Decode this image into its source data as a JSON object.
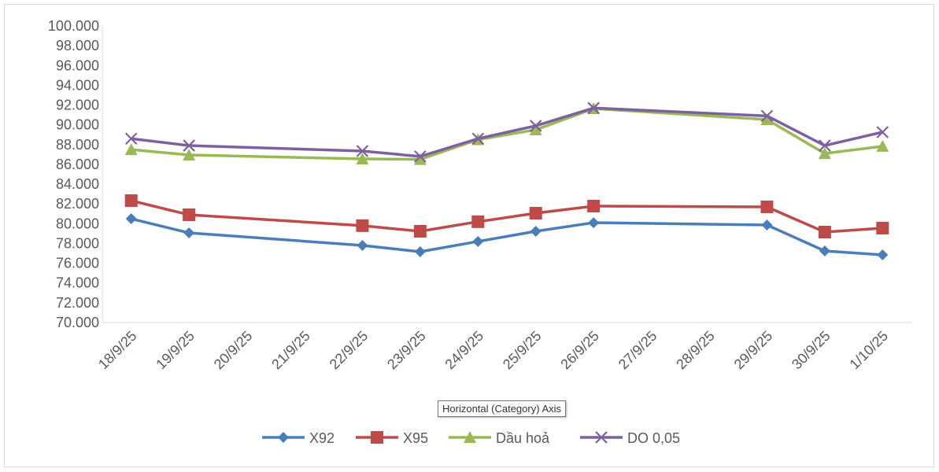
{
  "chart_data": {
    "type": "line",
    "title": "",
    "xlabel": "",
    "ylabel": "",
    "ylim": [
      70000,
      100000
    ],
    "ytick_step": 2000,
    "grid": false,
    "legend_position": "bottom",
    "categories": [
      "18/9/25",
      "19/9/25",
      "20/9/25",
      "21/9/25",
      "22/9/25",
      "23/9/25",
      "24/9/25",
      "25/9/25",
      "26/9/25",
      "27/9/25",
      "28/9/25",
      "29/9/25",
      "30/9/25",
      "1/10/25"
    ],
    "series": [
      {
        "name": "X92",
        "color": "#4a7ebb",
        "marker": "diamond",
        "values": [
          80500,
          79070,
          null,
          null,
          77800,
          77160,
          78200,
          79230,
          80100,
          null,
          null,
          79870,
          77240,
          76840
        ]
      },
      {
        "name": "X95",
        "color": "#be4b48",
        "marker": "square",
        "values": [
          82330,
          80900,
          null,
          null,
          79800,
          79230,
          80200,
          81060,
          81780,
          null,
          null,
          81700,
          79150,
          79550
        ]
      },
      {
        "name": "Dầu hoả",
        "color": "#98b954",
        "marker": "triangle",
        "values": [
          87500,
          86950,
          null,
          null,
          86550,
          86500,
          88500,
          89500,
          91640,
          null,
          null,
          90530,
          87100,
          87830
        ]
      },
      {
        "name": "DO 0,05",
        "color": "#7d60a0",
        "marker": "x",
        "values": [
          88600,
          87900,
          null,
          null,
          87350,
          86800,
          88600,
          89900,
          91700,
          null,
          null,
          90900,
          87900,
          89260
        ]
      }
    ]
  },
  "tooltip": "Horizontal (Category) Axis"
}
